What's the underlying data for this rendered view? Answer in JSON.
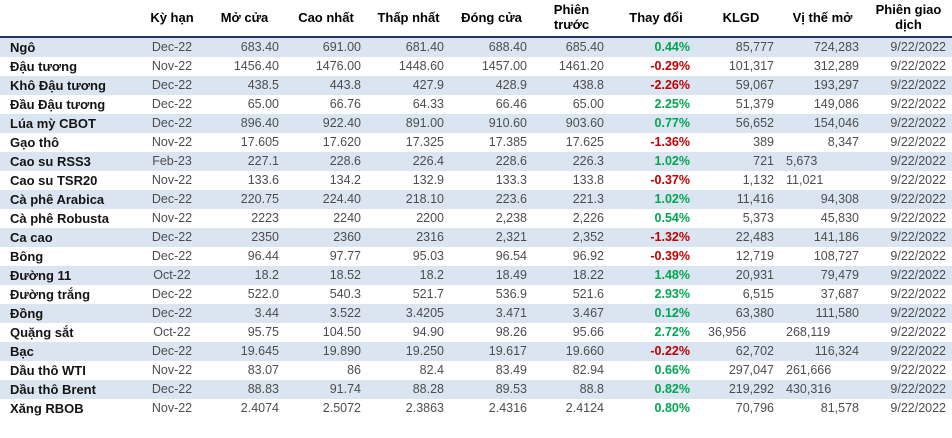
{
  "colors": {
    "band_blue": "#dbe5f2",
    "header_underline_navy": "#1f3864",
    "change_up_green": "#00a650",
    "change_down_red": "#c00000",
    "value_gray": "#4d4d4d",
    "name_black": "#141414"
  },
  "table": {
    "columns": [
      {
        "key": "name",
        "label": ""
      },
      {
        "key": "term",
        "label": "Kỳ hạn"
      },
      {
        "key": "open",
        "label": "Mở cửa"
      },
      {
        "key": "high",
        "label": "Cao nhất"
      },
      {
        "key": "low",
        "label": "Thấp nhất"
      },
      {
        "key": "close",
        "label": "Đóng cửa"
      },
      {
        "key": "prev",
        "label": "Phiên trước"
      },
      {
        "key": "change",
        "label": "Thay đổi"
      },
      {
        "key": "volume",
        "label": "KLGD"
      },
      {
        "key": "open_interest",
        "label": "Vị thế mở"
      },
      {
        "key": "session",
        "label": "Phiên giao dịch"
      }
    ],
    "rows": [
      {
        "name": "Ngô",
        "term": "Dec-22",
        "open": "683.40",
        "high": "691.00",
        "low": "681.40",
        "close": "688.40",
        "prev": "685.40",
        "change": "0.44%",
        "change_dir": "up",
        "volume": "85,777",
        "open_interest": "724,283",
        "session": "9/22/2022"
      },
      {
        "name": "Đậu tương",
        "term": "Nov-22",
        "open": "1456.40",
        "high": "1476.00",
        "low": "1448.60",
        "close": "1457.00",
        "prev": "1461.20",
        "change": "-0.29%",
        "change_dir": "down",
        "volume": "101,317",
        "open_interest": "312,289",
        "session": "9/22/2022"
      },
      {
        "name": "Khô Đậu tương",
        "term": "Dec-22",
        "open": "438.5",
        "high": "443.8",
        "low": "427.9",
        "close": "428.9",
        "prev": "438.8",
        "change": "-2.26%",
        "change_dir": "down",
        "volume": "59,067",
        "open_interest": "193,297",
        "session": "9/22/2022"
      },
      {
        "name": "Đầu Đậu tương",
        "term": "Dec-22",
        "open": "65.00",
        "high": "66.76",
        "low": "64.33",
        "close": "66.46",
        "prev": "65.00",
        "change": "2.25%",
        "change_dir": "up",
        "volume": "51,379",
        "open_interest": "149,086",
        "session": "9/22/2022"
      },
      {
        "name": "Lúa mỳ CBOT",
        "term": "Dec-22",
        "open": "896.40",
        "high": "922.40",
        "low": "891.00",
        "close": "910.60",
        "prev": "903.60",
        "change": "0.77%",
        "change_dir": "up",
        "volume": "56,652",
        "open_interest": "154,046",
        "session": "9/22/2022"
      },
      {
        "name": "Gạo thô",
        "term": "Nov-22",
        "open": "17.605",
        "high": "17.620",
        "low": "17.325",
        "close": "17.385",
        "prev": "17.625",
        "change": "-1.36%",
        "change_dir": "down",
        "volume": "389",
        "open_interest": "8,347",
        "session": "9/22/2022"
      },
      {
        "name": "Cao su RSS3",
        "term": "Feb-23",
        "open": "227.1",
        "high": "228.6",
        "low": "226.4",
        "close": "228.6",
        "prev": "226.3",
        "change": "1.02%",
        "change_dir": "up",
        "volume": "721",
        "open_interest": "5,673",
        "session": "9/22/2022",
        "align_left": [
          "open_interest"
        ]
      },
      {
        "name": "Cao su TSR20",
        "term": "Nov-22",
        "open": "133.6",
        "high": "134.2",
        "low": "132.9",
        "close": "133.3",
        "prev": "133.8",
        "change": "-0.37%",
        "change_dir": "down",
        "volume": "1,132",
        "open_interest": "11,021",
        "session": "9/22/2022",
        "align_left": [
          "open_interest"
        ]
      },
      {
        "name": "Cà phê Arabica",
        "term": "Dec-22",
        "open": "220.75",
        "high": "224.40",
        "low": "218.10",
        "close": "223.6",
        "prev": "221.3",
        "change": "1.02%",
        "change_dir": "up",
        "volume": "11,416",
        "open_interest": "94,308",
        "session": "9/22/2022"
      },
      {
        "name": "Cà phê Robusta",
        "term": "Nov-22",
        "open": "2223",
        "high": "2240",
        "low": "2200",
        "close": "2,238",
        "prev": "2,226",
        "change": "0.54%",
        "change_dir": "up",
        "volume": "5,373",
        "open_interest": "45,830",
        "session": "9/22/2022"
      },
      {
        "name": "Ca cao",
        "term": "Dec-22",
        "open": "2350",
        "high": "2360",
        "low": "2316",
        "close": "2,321",
        "prev": "2,352",
        "change": "-1.32%",
        "change_dir": "down",
        "volume": "22,483",
        "open_interest": "141,186",
        "session": "9/22/2022"
      },
      {
        "name": "Bông",
        "term": "Dec-22",
        "open": "96.44",
        "high": "97.77",
        "low": "95.03",
        "close": "96.54",
        "prev": "96.92",
        "change": "-0.39%",
        "change_dir": "down",
        "volume": "12,719",
        "open_interest": "108,727",
        "session": "9/22/2022"
      },
      {
        "name": "Đường 11",
        "term": "Oct-22",
        "open": "18.2",
        "high": "18.52",
        "low": "18.2",
        "close": "18.49",
        "prev": "18.22",
        "change": "1.48%",
        "change_dir": "up",
        "volume": "20,931",
        "open_interest": "79,479",
        "session": "9/22/2022"
      },
      {
        "name": "Đường trắng",
        "term": "Dec-22",
        "open": "522.0",
        "high": "540.3",
        "low": "521.7",
        "close": "536.9",
        "prev": "521.6",
        "change": "2.93%",
        "change_dir": "up",
        "volume": "6,515",
        "open_interest": "37,687",
        "session": "9/22/2022"
      },
      {
        "name": "Đồng",
        "term": "Dec-22",
        "open": "3.44",
        "high": "3.522",
        "low": "3.4205",
        "close": "3.471",
        "prev": "3.467",
        "change": "0.12%",
        "change_dir": "up",
        "volume": "63,380",
        "open_interest": "111,580",
        "session": "9/22/2022"
      },
      {
        "name": "Quặng sắt",
        "term": "Oct-22",
        "open": "95.75",
        "high": "104.50",
        "low": "94.90",
        "close": "98.26",
        "prev": "95.66",
        "change": "2.72%",
        "change_dir": "up",
        "volume": "36,956",
        "open_interest": "268,119",
        "session": "9/22/2022",
        "align_left": [
          "volume",
          "open_interest"
        ]
      },
      {
        "name": "Bạc",
        "term": "Dec-22",
        "open": "19.645",
        "high": "19.890",
        "low": "19.250",
        "close": "19.617",
        "prev": "19.660",
        "change": "-0.22%",
        "change_dir": "down",
        "volume": "62,702",
        "open_interest": "116,324",
        "session": "9/22/2022"
      },
      {
        "name": "Dầu thô WTI",
        "term": "Nov-22",
        "open": "83.07",
        "high": "86",
        "low": "82.4",
        "close": "83.49",
        "prev": "82.94",
        "change": "0.66%",
        "change_dir": "up",
        "volume": "297,047",
        "open_interest": "261,666",
        "session": "9/22/2022",
        "align_left": [
          "open_interest"
        ]
      },
      {
        "name": "Dầu thô Brent",
        "term": "Dec-22",
        "open": "88.83",
        "high": "91.74",
        "low": "88.28",
        "close": "89.53",
        "prev": "88.8",
        "change": "0.82%",
        "change_dir": "up",
        "volume": "219,292",
        "open_interest": "430,316",
        "session": "9/22/2022",
        "align_left": [
          "open_interest"
        ]
      },
      {
        "name": "Xăng RBOB",
        "term": "Nov-22",
        "open": "2.4074",
        "high": "2.5072",
        "low": "2.3863",
        "close": "2.4316",
        "prev": "2.4124",
        "change": "0.80%",
        "change_dir": "up",
        "volume": "70,796",
        "open_interest": "81,578",
        "session": "9/22/2022"
      }
    ]
  }
}
